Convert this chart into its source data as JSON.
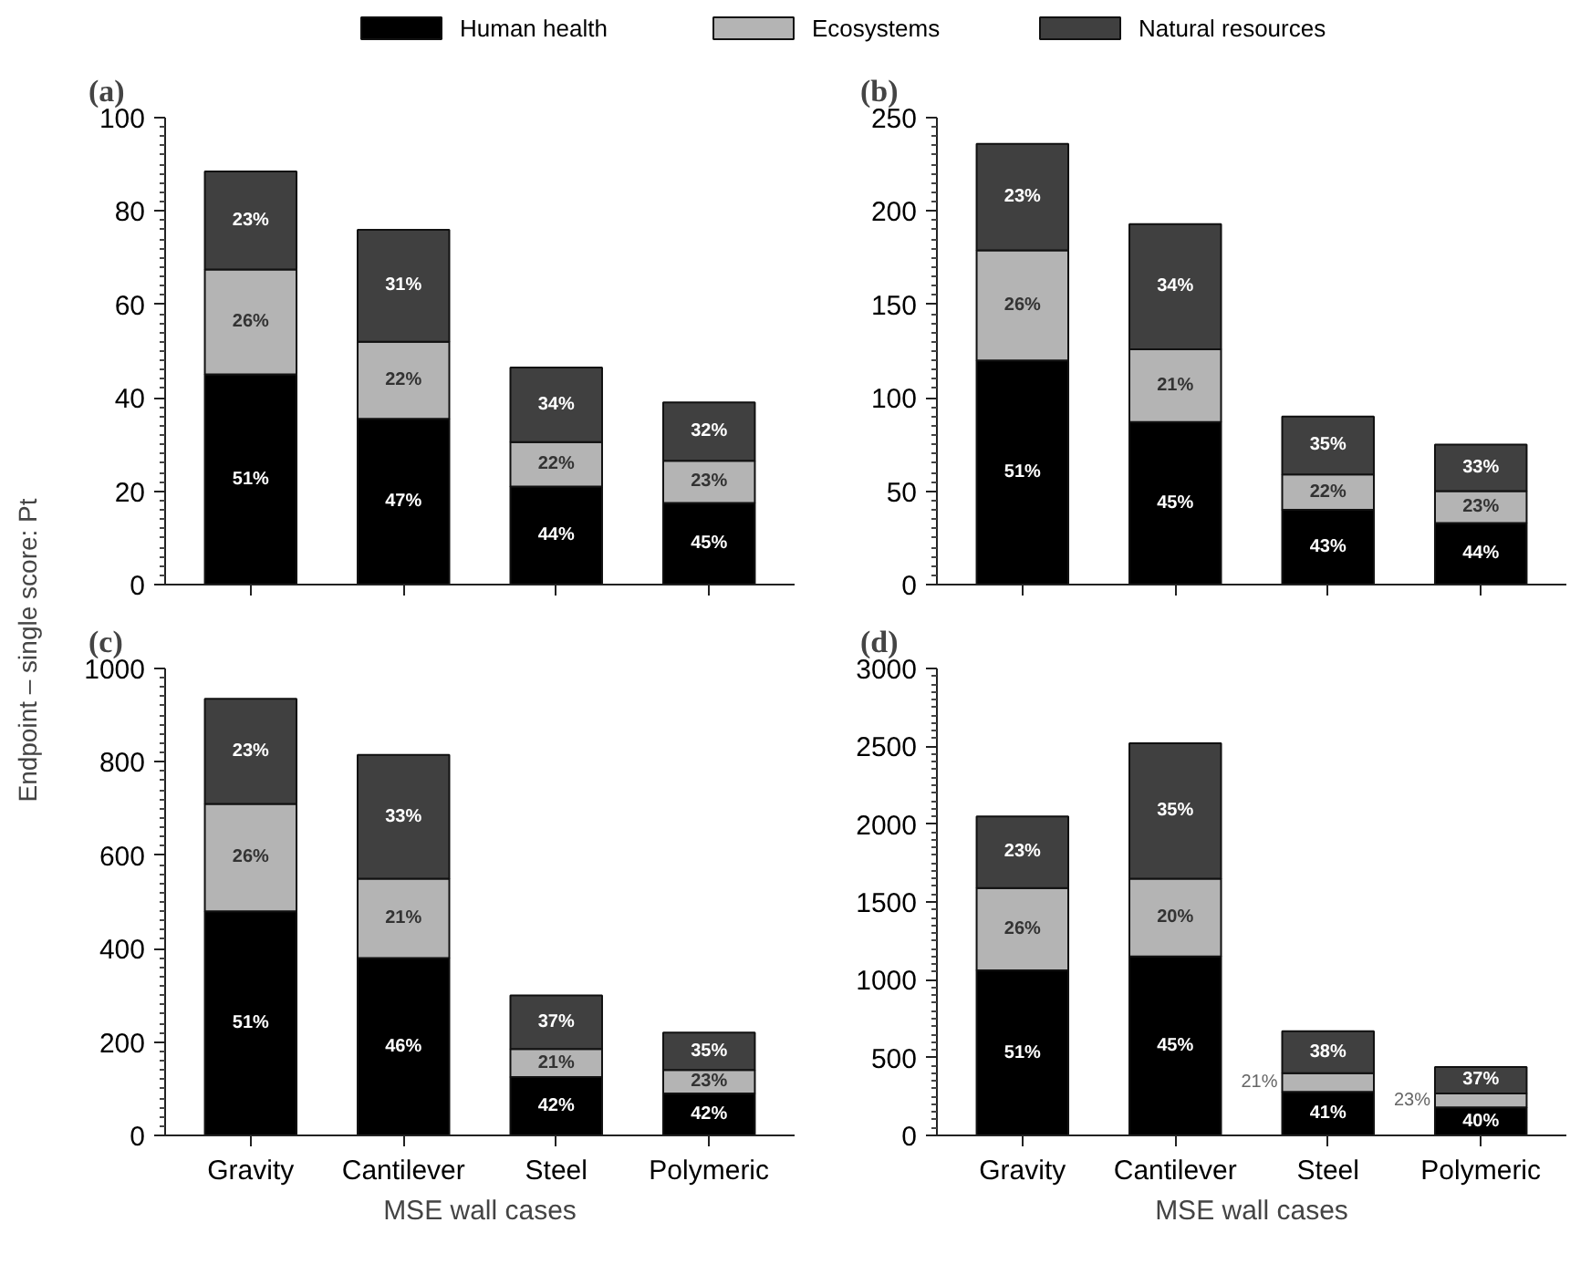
{
  "chart_data": [
    {
      "type": "bar",
      "title": "(a)",
      "stacked": true,
      "legend": "top",
      "ylabel": "Endpoint – single score: Pt",
      "tick_labels": "y",
      "categories": [
        null,
        null,
        null,
        null
      ],
      "ylim": [
        0,
        100
      ],
      "yticks": [
        0,
        20,
        40,
        60,
        80,
        100
      ],
      "series": [
        {
          "name": "Human health",
          "color": "#000000",
          "values": [
            45,
            35.5,
            21,
            17.5
          ]
        },
        {
          "name": "Ecosystems",
          "color": "#b4b4b4",
          "values": [
            22.5,
            16.5,
            9.5,
            9
          ]
        },
        {
          "name": "Natural resources",
          "color": "#404040",
          "values": [
            21,
            24,
            16,
            12.5
          ]
        }
      ],
      "annotations": [
        "51%",
        "26%",
        "23%",
        "47%",
        "22%",
        "31%",
        "44%",
        "22%",
        "34%",
        "45%",
        "23%",
        "32%"
      ]
    },
    {
      "type": "bar",
      "title": "(b)",
      "stacked": true,
      "tick_labels": "y",
      "categories": [
        null,
        null,
        null,
        null
      ],
      "ylim": [
        0,
        250
      ],
      "yticks": [
        0,
        50,
        100,
        150,
        200,
        250
      ],
      "series": [
        {
          "color": "#000000",
          "values": [
            120,
            87,
            40,
            33
          ]
        },
        {
          "color": "#b4b4b4",
          "values": [
            59,
            39,
            19,
            17
          ]
        },
        {
          "color": "#404040",
          "values": [
            57,
            67,
            31,
            25
          ]
        }
      ],
      "annotations": [
        "51%",
        "26%",
        "23%",
        "45%",
        "21%",
        "34%",
        "43%",
        "22%",
        "35%",
        "44%",
        "23%",
        "33%"
      ]
    },
    {
      "type": "bar",
      "title": "(c)",
      "stacked": true,
      "xlabel": "MSE wall cases",
      "categories": [
        "Gravity",
        "Cantilever",
        "Steel",
        "Polymeric"
      ],
      "ylim": [
        0,
        1000
      ],
      "yticks": [
        0,
        200,
        400,
        600,
        800,
        1000
      ],
      "series": [
        {
          "color": "#000000",
          "values": [
            480,
            380,
            125,
            90
          ]
        },
        {
          "color": "#b4b4b4",
          "values": [
            230,
            170,
            60,
            50
          ]
        },
        {
          "color": "#404040",
          "values": [
            225,
            265,
            115,
            80
          ]
        }
      ],
      "annotations": [
        "51%",
        "26%",
        "23%",
        "46%",
        "21%",
        "33%",
        "42%",
        "21%",
        "37%",
        "42%",
        "23%",
        "35%"
      ]
    },
    {
      "type": "bar",
      "title": "(d)",
      "stacked": true,
      "xlabel": "MSE wall cases",
      "categories": [
        "Gravity",
        "Cantilever",
        "Steel",
        "Polymeric"
      ],
      "ylim": [
        0,
        3000
      ],
      "yticks": [
        0,
        500,
        1000,
        1500,
        2000,
        2500,
        3000
      ],
      "series": [
        {
          "color": "#000000",
          "values": [
            1060,
            1150,
            280,
            180
          ]
        },
        {
          "color": "#b4b4b4",
          "values": [
            530,
            500,
            120,
            90
          ]
        },
        {
          "color": "#404040",
          "values": [
            460,
            870,
            270,
            170
          ]
        }
      ],
      "annotations": [
        "51%",
        "26%",
        "23%",
        "45%",
        "20%",
        "35%",
        "41%",
        "21%",
        "38%",
        "40%",
        "23%",
        "37%"
      ]
    }
  ]
}
